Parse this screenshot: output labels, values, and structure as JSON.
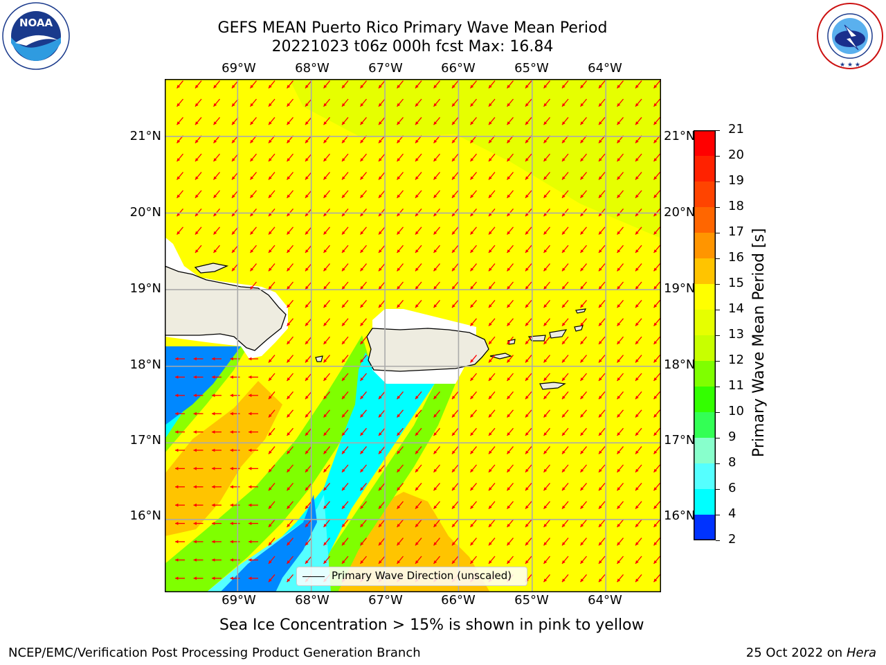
{
  "header": {
    "title_line1": "GEFS MEAN Puerto Rico Primary Wave Mean Period",
    "title_line2": "20221023 t06z 000h fcst   Max: 16.84"
  },
  "logos": {
    "left": {
      "name": "noaa-logo",
      "text": "NOAA",
      "ring_text": "NATIONAL OCEANIC AND ATMOSPHERIC ADMINISTRATION · U.S. DEPARTMENT OF COMMERCE"
    },
    "right": {
      "name": "nws-logo",
      "ring_text": "NATIONAL WEATHER SERVICE"
    }
  },
  "map": {
    "lon_labels": [
      "69°W",
      "68°W",
      "67°W",
      "66°W",
      "65°W",
      "64°W"
    ],
    "lat_labels": [
      "21°N",
      "20°N",
      "19°N",
      "18°N",
      "17°N",
      "16°N"
    ],
    "lon_values": [
      -69,
      -68,
      -67,
      -66,
      -65,
      -64
    ],
    "lat_values": [
      21,
      20,
      19,
      18,
      17,
      16
    ],
    "extent": {
      "lon_min": -69.99,
      "lon_max": -63.25,
      "lat_min": 15.05,
      "lat_max": 21.75
    },
    "legend_text": "Primary Wave Direction (unscaled)",
    "arrow_color": "#ff0000",
    "land_color": "#eeece0"
  },
  "colorbar": {
    "label": "Primary Wave Mean Period [s]",
    "ticks": [
      "21",
      "20",
      "19",
      "18",
      "17",
      "16",
      "15",
      "14",
      "13",
      "12",
      "11",
      "10",
      "9",
      "8",
      "6",
      "4",
      "2"
    ],
    "colors_top_to_bottom": [
      "#ff0000",
      "#ff2200",
      "#ff4400",
      "#ff6600",
      "#ff9500",
      "#ffc400",
      "#ffff00",
      "#e6ff00",
      "#c8ff00",
      "#7fff00",
      "#33ff00",
      "#33ff55",
      "#88ffcc",
      "#55ffff",
      "#00ffff",
      "#0088ff",
      "#0033ff"
    ]
  },
  "notes": {
    "sea_ice": "Sea Ice Concentration > 15% is shown in pink to yellow"
  },
  "footer": {
    "left": "NCEP/EMC/Verification Post Processing Product Generation Branch",
    "right_prefix": "25 Oct 2022 on ",
    "right_machine": "Hera"
  }
}
